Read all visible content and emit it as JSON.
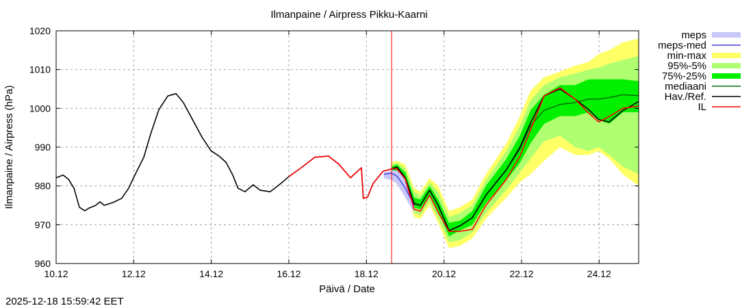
{
  "chart_data": {
    "type": "line",
    "title": "Ilmanpaine / Airpress Pikku-Kaarni",
    "xlabel": "Päivä / Date",
    "ylabel": "Ilmanpaine / Airpress (hPa)",
    "timestamp": "2025-12-18 15:59:42 EET",
    "x_unit": "days since 10.12 00:00",
    "xlim": [
      0,
      15.02
    ],
    "ylim": [
      960,
      1020
    ],
    "x_ticks": [
      {
        "day": 0,
        "label": "10.12"
      },
      {
        "day": 2,
        "label": "12.12"
      },
      {
        "day": 4,
        "label": "14.12"
      },
      {
        "day": 6,
        "label": "16.12"
      },
      {
        "day": 8,
        "label": "18.12"
      },
      {
        "day": 10,
        "label": "20.12"
      },
      {
        "day": 12,
        "label": "22.12"
      },
      {
        "day": 14,
        "label": "24.12"
      }
    ],
    "y_ticks": [
      960,
      970,
      980,
      990,
      1000,
      1010,
      1020
    ],
    "grid": true,
    "legend_position": "right",
    "now_marker_day": 8.65,
    "colors": {
      "meps": "#c8c8f8",
      "meps_med": "#4040e0",
      "min_max": "#ffff66",
      "p95_5": "#b0ff70",
      "p75_25": "#00f000",
      "mediaani": "#007000",
      "hav": "#000000",
      "il": "#ff0000",
      "now": "#ff0000"
    },
    "legend": [
      {
        "key": "meps",
        "label": "meps",
        "kind": "band"
      },
      {
        "key": "meps_med",
        "label": "meps-med",
        "kind": "line"
      },
      {
        "key": "min_max",
        "label": "min-max",
        "kind": "band"
      },
      {
        "key": "p95_5",
        "label": "95%-5%",
        "kind": "band"
      },
      {
        "key": "p75_25",
        "label": "75%-25%",
        "kind": "band"
      },
      {
        "key": "mediaani",
        "label": "mediaani",
        "kind": "line"
      },
      {
        "key": "hav",
        "label": "Hav./Ref.",
        "kind": "line"
      },
      {
        "key": "il",
        "label": "IL",
        "kind": "line"
      }
    ],
    "observed": {
      "x": [
        0,
        0.18,
        0.32,
        0.46,
        0.6,
        0.74,
        0.85,
        1.02,
        1.13,
        1.24,
        1.46,
        1.69,
        1.87,
        2.01,
        2.26,
        2.44,
        2.65,
        2.88,
        3.09,
        3.28,
        3.49,
        3.76,
        3.99,
        4.2,
        4.38,
        4.55,
        4.69,
        4.87,
        5.08,
        5.26,
        5.52,
        5.79,
        6.0,
        6.32,
        6.67,
        7.02,
        7.29,
        7.59,
        7.87,
        7.92,
        8.03,
        8.17,
        8.43,
        8.65
      ],
      "y": [
        982.1,
        982.8,
        981.7,
        979.4,
        974.5,
        973.6,
        974.3,
        975,
        975.9,
        975,
        975.7,
        976.8,
        979.4,
        982.4,
        987.4,
        993.5,
        999.7,
        1003.2,
        1003.8,
        1001.5,
        997.6,
        992.6,
        989.1,
        987.7,
        986.1,
        982.9,
        979.4,
        978.5,
        980.3,
        978.9,
        978.5,
        980.6,
        982.4,
        984.7,
        987.4,
        987.7,
        985.6,
        982.1,
        984.7,
        976.8,
        977.1,
        980.6,
        983.8,
        984.4
      ]
    },
    "il_history_start_day": 6.0,
    "forecast": {
      "x": [
        8.65,
        8.79,
        9.0,
        9.23,
        9.39,
        9.63,
        9.85,
        10.13,
        10.41,
        10.73,
        11.08,
        11.61,
        11.96,
        12.23,
        12.58,
        12.99,
        13.38,
        13.73,
        13.99,
        14.26,
        14.61,
        15.02
      ],
      "hav": [
        984.4,
        984.9,
        982.1,
        975.4,
        975,
        978.9,
        975,
        968.5,
        969.7,
        971.8,
        977.6,
        984.2,
        990,
        996.2,
        1003.2,
        1005,
        1002.4,
        999.7,
        997.1,
        996.5,
        999.4,
        1001.8
      ],
      "il": [
        984.4,
        984.4,
        981.8,
        974,
        973.5,
        977.6,
        973.2,
        968.3,
        968.3,
        968.8,
        975,
        981.7,
        987.7,
        994.4,
        1003.2,
        1005.3,
        1002.4,
        998.8,
        996.5,
        997.9,
        1000,
        1000.6
      ],
      "mediaani": [
        984.4,
        984.9,
        982.1,
        975.6,
        975,
        978.9,
        975,
        968.5,
        969.7,
        971.8,
        977.6,
        984.2,
        989.5,
        995.5,
        999.5,
        1001,
        1001.5,
        1002.4,
        1002.4,
        1002.8,
        1003.5,
        1003.3
      ],
      "p25": [
        984,
        984,
        980.8,
        974.5,
        974,
        977.5,
        973.5,
        967,
        968.5,
        970,
        975.5,
        981.5,
        986,
        991,
        996,
        998,
        998,
        999,
        997,
        996,
        999,
        999
      ],
      "p75": [
        985,
        985.5,
        983.5,
        977,
        976.5,
        980,
        976.5,
        970.5,
        971,
        973.5,
        980,
        987,
        993,
        999.5,
        1003.5,
        1006,
        1006,
        1007.5,
        1007.5,
        1007.5,
        1007.5,
        1007
      ],
      "p5": [
        983.5,
        983,
        979.5,
        973,
        972.5,
        976,
        971.5,
        965.5,
        966,
        968,
        973,
        979,
        983.5,
        987,
        991.5,
        993,
        990,
        989,
        990,
        988,
        985,
        983
      ],
      "p95": [
        985.5,
        986,
        984.5,
        978.5,
        977.5,
        981,
        978.5,
        972,
        973,
        975,
        981.5,
        989,
        995.5,
        1002,
        1006,
        1008,
        1009,
        1010,
        1010.5,
        1011.5,
        1012.5,
        1013.5
      ],
      "min": [
        983,
        982.5,
        979,
        972,
        971.5,
        975,
        970.5,
        964,
        964.5,
        966.5,
        971.5,
        977,
        981,
        983,
        986.5,
        990,
        988,
        988,
        989,
        987,
        983,
        980
      ],
      "max": [
        986,
        986.5,
        985.5,
        979.5,
        978.5,
        982,
        980,
        973.5,
        974.5,
        976.5,
        983,
        991,
        998,
        1004.5,
        1008,
        1009.5,
        1011,
        1012,
        1014,
        1015,
        1017,
        1018
      ]
    },
    "meps": {
      "x": [
        8.45,
        8.65,
        8.79,
        9.0,
        9.23
      ],
      "low": [
        982,
        981.5,
        980.5,
        977,
        973
      ],
      "high": [
        983.5,
        984,
        984,
        982,
        976
      ],
      "med": [
        983,
        983.3,
        982.5,
        979.5,
        975
      ]
    }
  }
}
